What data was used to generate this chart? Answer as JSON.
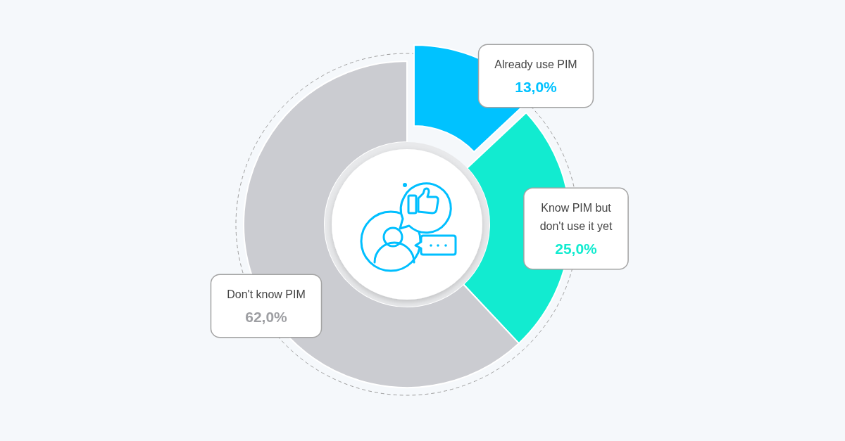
{
  "chart_data": {
    "type": "donut",
    "categories": [
      "Already use PIM",
      "Know PIM but don't use it yet",
      "Don't know PIM"
    ],
    "values": [
      13,
      25,
      62
    ],
    "colors": [
      "#00c2ff",
      "#12ebd0",
      "#cbccd1"
    ],
    "value_labels": [
      "13,0%",
      "25,0%",
      "62,0%"
    ]
  }
}
